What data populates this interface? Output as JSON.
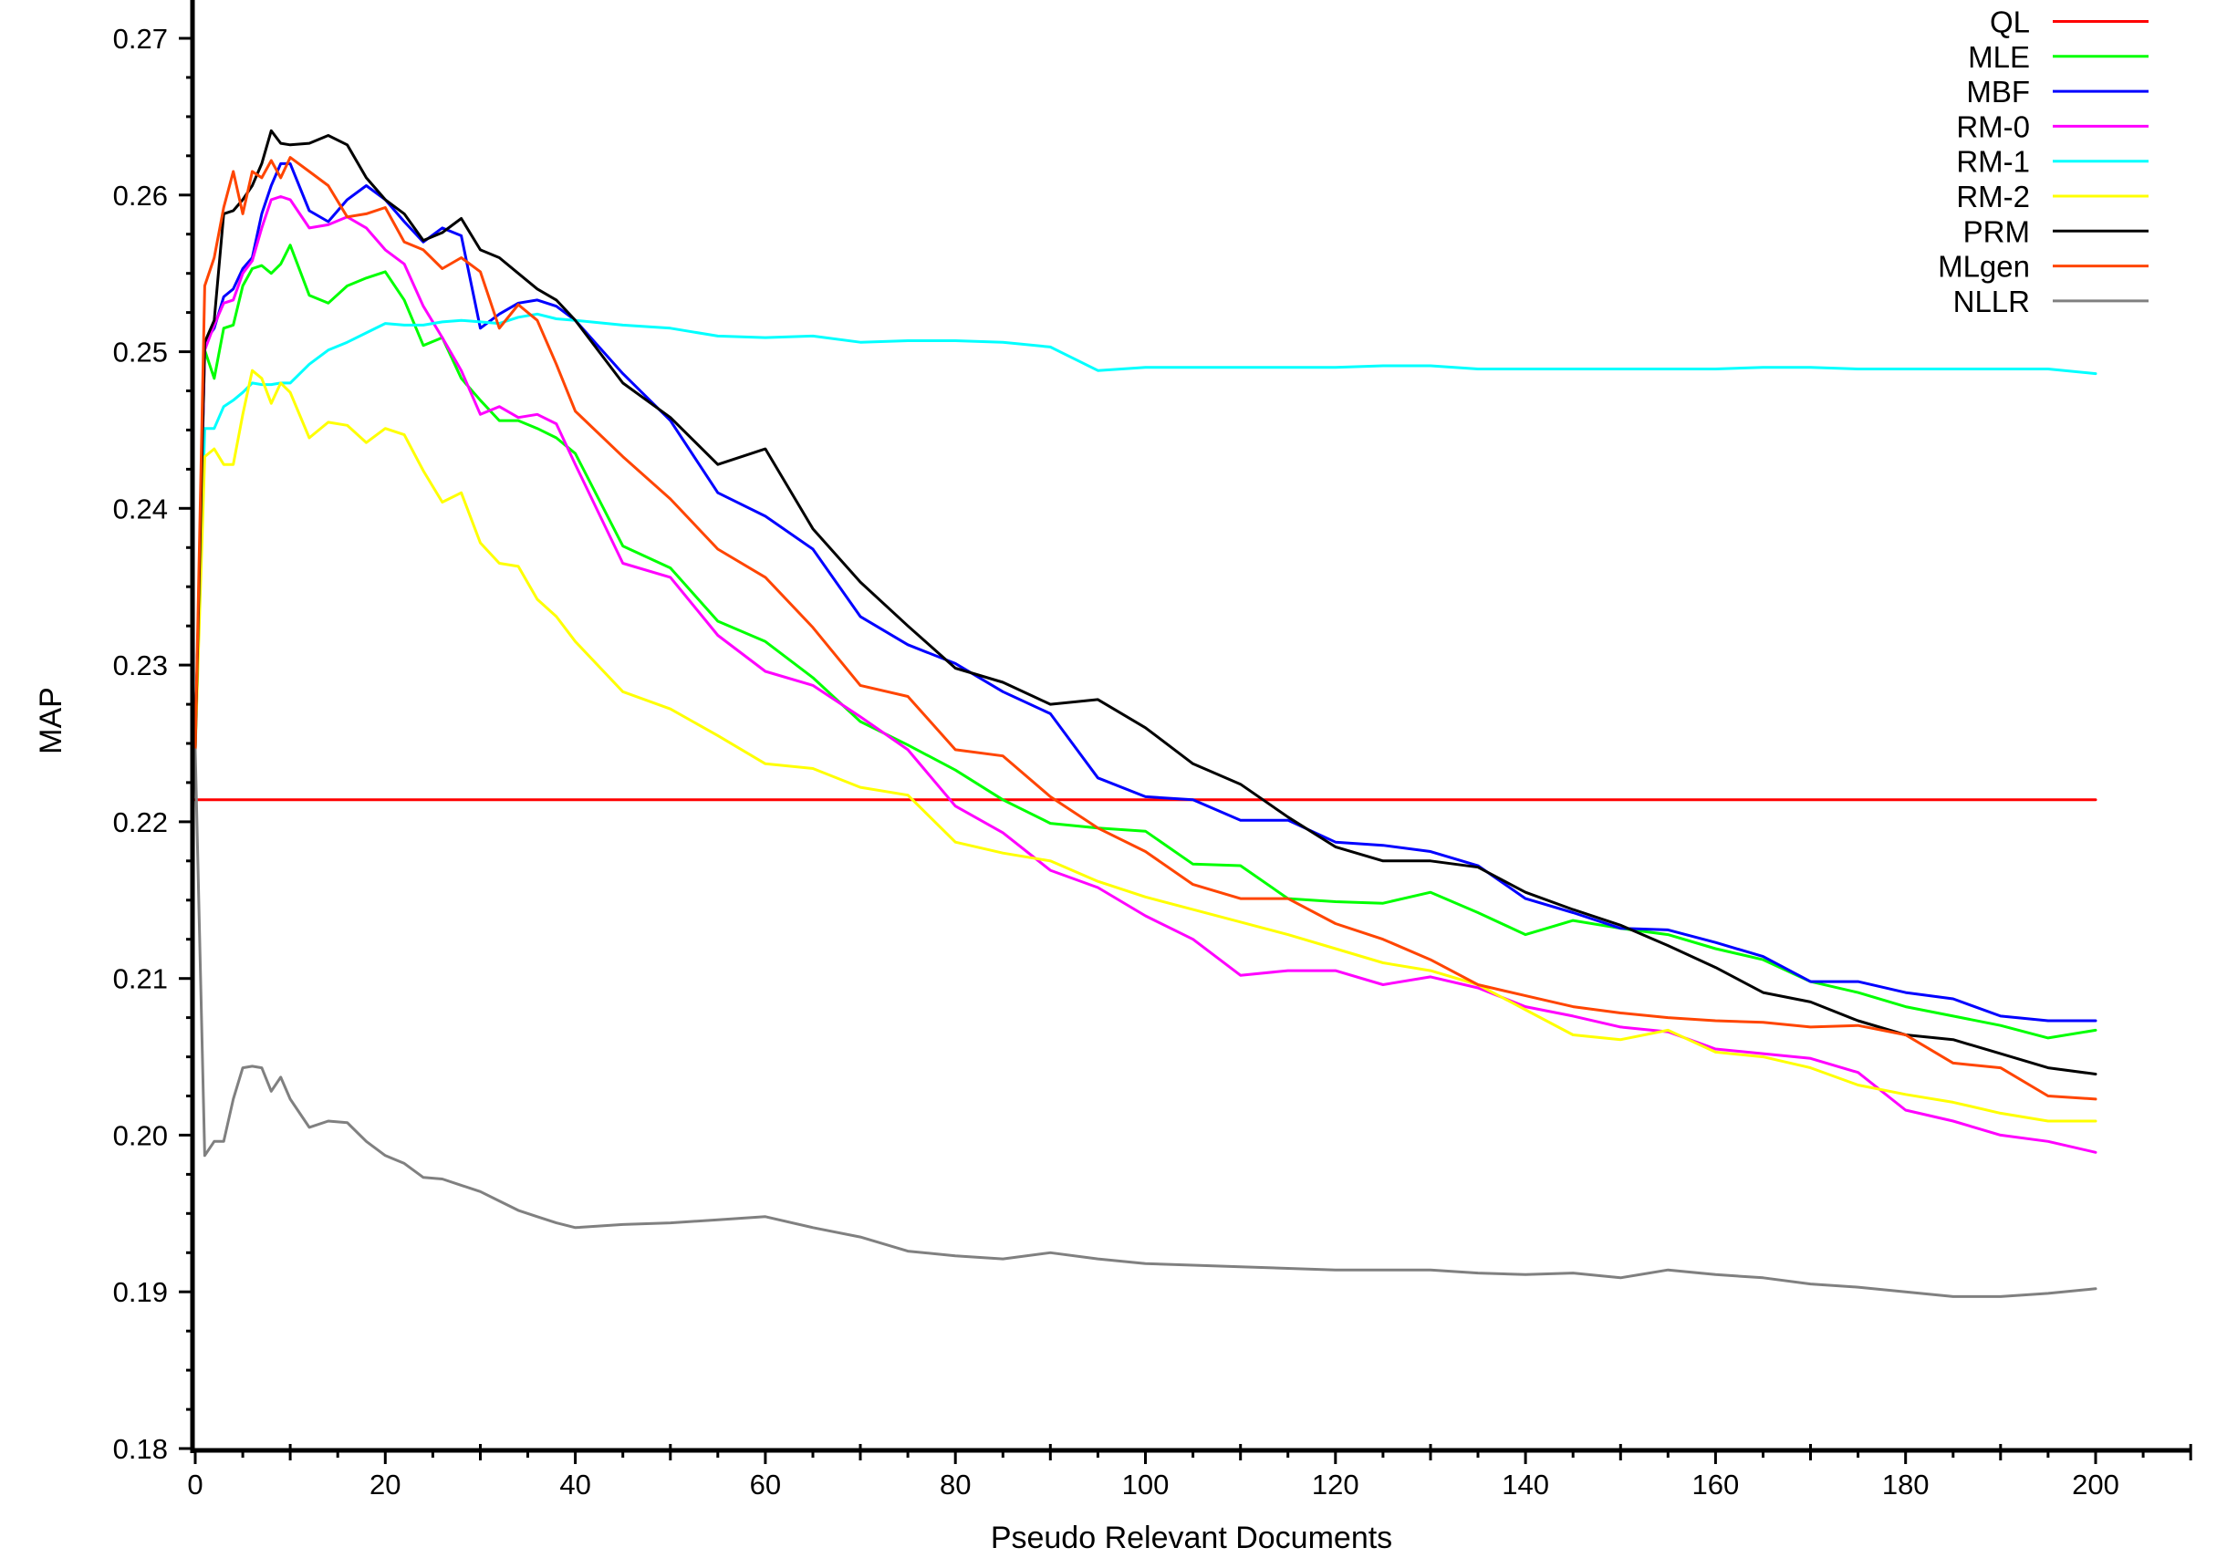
{
  "chart_data": {
    "type": "line",
    "xlabel": "Pseudo Relevant Documents",
    "ylabel": "MAP",
    "xlim": [
      0,
      200
    ],
    "ylim": [
      0.18,
      0.27
    ],
    "xticks": [
      "0",
      "20",
      "40",
      "60",
      "80",
      "100",
      "120",
      "140",
      "160",
      "180",
      "200"
    ],
    "yticks": [
      "0.18",
      "0.19",
      "0.20",
      "0.21",
      "0.22",
      "0.23",
      "0.24",
      "0.25",
      "0.26",
      "0.27"
    ],
    "legend_position": "top-right",
    "grid": false,
    "x": [
      0,
      1,
      2,
      3,
      4,
      5,
      6,
      7,
      8,
      9,
      10,
      12,
      14,
      16,
      18,
      20,
      22,
      24,
      26,
      28,
      30,
      32,
      34,
      36,
      38,
      40,
      45,
      50,
      55,
      60,
      65,
      70,
      75,
      80,
      85,
      90,
      95,
      100,
      105,
      110,
      115,
      120,
      125,
      130,
      135,
      140,
      145,
      150,
      155,
      160,
      165,
      170,
      175,
      180,
      185,
      190,
      195,
      200
    ],
    "series": [
      {
        "name": "QL",
        "color": "#ff0000",
        "values": [
          0.2214,
          0.2214,
          0.2214,
          0.2214,
          0.2214,
          0.2214,
          0.2214,
          0.2214,
          0.2214,
          0.2214,
          0.2214,
          0.2214,
          0.2214,
          0.2214,
          0.2214,
          0.2214,
          0.2214,
          0.2214,
          0.2214,
          0.2214,
          0.2214,
          0.2214,
          0.2214,
          0.2214,
          0.2214,
          0.2214,
          0.2214,
          0.2214,
          0.2214,
          0.2214,
          0.2214,
          0.2214,
          0.2214,
          0.2214,
          0.2214,
          0.2214,
          0.2214,
          0.2214,
          0.2214,
          0.2214,
          0.2214,
          0.2214,
          0.2214,
          0.2214,
          0.2214,
          0.2214,
          0.2214,
          0.2214,
          0.2214,
          0.2214,
          0.2214,
          0.2214,
          0.2214,
          0.2214,
          0.2214,
          0.2214,
          0.2214,
          0.2214
        ]
      },
      {
        "name": "MLE",
        "color": "#00ff00",
        "values": [
          0.2246,
          0.2501,
          0.2483,
          0.2515,
          0.2517,
          0.2542,
          0.2553,
          0.2555,
          0.255,
          0.2556,
          0.2568,
          0.2536,
          0.2531,
          0.2542,
          0.2547,
          0.2551,
          0.2533,
          0.2504,
          0.2509,
          0.2483,
          0.2469,
          0.2456,
          0.2456,
          0.2451,
          0.2445,
          0.2435,
          0.2376,
          0.2362,
          0.2328,
          0.2315,
          0.2292,
          0.2264,
          0.2249,
          0.2233,
          0.2214,
          0.2199,
          0.2196,
          0.2194,
          0.2173,
          0.2172,
          0.2151,
          0.2149,
          0.2148,
          0.2155,
          0.2142,
          0.2128,
          0.2137,
          0.2132,
          0.2128,
          0.2119,
          0.2112,
          0.2098,
          0.2091,
          0.2082,
          0.2076,
          0.207,
          0.2062,
          0.2067
        ]
      },
      {
        "name": "MBF",
        "color": "#0000ff",
        "values": [
          0.2246,
          0.2506,
          0.2515,
          0.2535,
          0.254,
          0.2553,
          0.256,
          0.2588,
          0.2606,
          0.262,
          0.262,
          0.259,
          0.2583,
          0.2597,
          0.2606,
          0.2597,
          0.2583,
          0.257,
          0.2579,
          0.2574,
          0.2515,
          0.2524,
          0.2531,
          0.2533,
          0.2529,
          0.252,
          0.2486,
          0.2456,
          0.241,
          0.2395,
          0.2374,
          0.2331,
          0.2313,
          0.2301,
          0.2283,
          0.2269,
          0.2228,
          0.2216,
          0.2214,
          0.2201,
          0.2201,
          0.2187,
          0.2185,
          0.2181,
          0.2172,
          0.2151,
          0.2142,
          0.2132,
          0.2131,
          0.2123,
          0.2114,
          0.2098,
          0.2098,
          0.2091,
          0.2087,
          0.2076,
          0.2073,
          0.2073
        ]
      },
      {
        "name": "RM-0",
        "color": "#ff00ff",
        "values": [
          0.2246,
          0.2501,
          0.2517,
          0.2531,
          0.2533,
          0.255,
          0.2558,
          0.2579,
          0.2597,
          0.2599,
          0.2597,
          0.2579,
          0.2581,
          0.2586,
          0.2579,
          0.2565,
          0.2556,
          0.2529,
          0.2509,
          0.2488,
          0.246,
          0.2465,
          0.2458,
          0.246,
          0.2454,
          0.2428,
          0.2365,
          0.2356,
          0.2319,
          0.2296,
          0.2287,
          0.2267,
          0.2246,
          0.221,
          0.2193,
          0.2169,
          0.2158,
          0.214,
          0.2125,
          0.2102,
          0.2105,
          0.2105,
          0.2096,
          0.2101,
          0.2094,
          0.2082,
          0.2076,
          0.2069,
          0.2066,
          0.2055,
          0.2052,
          0.2049,
          0.204,
          0.2016,
          0.2009,
          0.2,
          0.1996,
          0.1989
        ]
      },
      {
        "name": "RM-1",
        "color": "#00ffff",
        "values": [
          0.2246,
          0.2451,
          0.2451,
          0.2465,
          0.2469,
          0.2474,
          0.248,
          0.2479,
          0.2479,
          0.248,
          0.248,
          0.2492,
          0.2501,
          0.2506,
          0.2512,
          0.2518,
          0.2517,
          0.2517,
          0.2519,
          0.252,
          0.2519,
          0.2518,
          0.2522,
          0.2524,
          0.2521,
          0.252,
          0.2517,
          0.2515,
          0.251,
          0.2509,
          0.251,
          0.2506,
          0.2507,
          0.2507,
          0.2506,
          0.2503,
          0.2488,
          0.249,
          0.249,
          0.249,
          0.249,
          0.249,
          0.2491,
          0.2491,
          0.2489,
          0.2489,
          0.2489,
          0.2489,
          0.2489,
          0.2489,
          0.249,
          0.249,
          0.2489,
          0.2489,
          0.2489,
          0.2489,
          0.2489,
          0.2486
        ]
      },
      {
        "name": "RM-2",
        "color": "#ffff00",
        "values": [
          0.2246,
          0.2433,
          0.2438,
          0.2428,
          0.2428,
          0.246,
          0.2488,
          0.2483,
          0.2467,
          0.248,
          0.2474,
          0.2445,
          0.2455,
          0.2453,
          0.2442,
          0.2451,
          0.2447,
          0.2424,
          0.2404,
          0.241,
          0.2378,
          0.2365,
          0.2363,
          0.2342,
          0.2331,
          0.2315,
          0.2283,
          0.2272,
          0.2255,
          0.2237,
          0.2234,
          0.2222,
          0.2217,
          0.2187,
          0.218,
          0.2175,
          0.2162,
          0.2152,
          0.2144,
          0.2136,
          0.2128,
          0.2119,
          0.211,
          0.2105,
          0.2096,
          0.208,
          0.2064,
          0.2061,
          0.2067,
          0.2053,
          0.205,
          0.2043,
          0.2032,
          0.2026,
          0.2021,
          0.2014,
          0.2009,
          0.2009
        ]
      },
      {
        "name": "PRM",
        "color": "#000000",
        "values": [
          0.2246,
          0.2506,
          0.252,
          0.2588,
          0.259,
          0.2597,
          0.2606,
          0.262,
          0.2641,
          0.2633,
          0.2632,
          0.2633,
          0.2638,
          0.2632,
          0.2611,
          0.2597,
          0.2588,
          0.2571,
          0.2576,
          0.2585,
          0.2565,
          0.256,
          0.255,
          0.254,
          0.2533,
          0.252,
          0.248,
          0.2458,
          0.2428,
          0.2438,
          0.2387,
          0.2353,
          0.2325,
          0.2298,
          0.2289,
          0.2275,
          0.2278,
          0.226,
          0.2237,
          0.2224,
          0.2203,
          0.2184,
          0.2175,
          0.2175,
          0.2171,
          0.2155,
          0.2144,
          0.2134,
          0.2121,
          0.2107,
          0.2091,
          0.2085,
          0.2073,
          0.2064,
          0.2061,
          0.2052,
          0.2043,
          0.2039
        ]
      },
      {
        "name": "MLgen",
        "color": "#ff4500",
        "values": [
          0.2246,
          0.2542,
          0.256,
          0.2592,
          0.2615,
          0.2588,
          0.2615,
          0.2611,
          0.2622,
          0.2611,
          0.2624,
          0.2615,
          0.2606,
          0.2586,
          0.2588,
          0.2592,
          0.257,
          0.2565,
          0.2553,
          0.256,
          0.2551,
          0.2515,
          0.253,
          0.252,
          0.2492,
          0.2462,
          0.2433,
          0.2406,
          0.2374,
          0.2356,
          0.2324,
          0.2287,
          0.228,
          0.2246,
          0.2242,
          0.2216,
          0.2196,
          0.2181,
          0.216,
          0.2151,
          0.2151,
          0.2135,
          0.2125,
          0.2112,
          0.2096,
          0.2089,
          0.2082,
          0.2078,
          0.2075,
          0.2073,
          0.2072,
          0.2069,
          0.207,
          0.2064,
          0.2046,
          0.2043,
          0.2025,
          0.2023
        ]
      },
      {
        "name": "NLLR",
        "color": "#808080",
        "values": [
          0.2246,
          0.1987,
          0.1996,
          0.1996,
          0.2023,
          0.2043,
          0.2044,
          0.2043,
          0.2028,
          0.2037,
          0.2023,
          0.2005,
          0.2009,
          0.2008,
          0.1996,
          0.1987,
          0.1982,
          0.1973,
          0.1972,
          0.1968,
          0.1964,
          0.1958,
          0.1952,
          0.1948,
          0.1944,
          0.1941,
          0.1943,
          0.1944,
          0.1946,
          0.1948,
          0.1941,
          0.1935,
          0.1926,
          0.1923,
          0.1921,
          0.1925,
          0.1921,
          0.1918,
          0.1917,
          0.1916,
          0.1915,
          0.1914,
          0.1914,
          0.1914,
          0.1912,
          0.1911,
          0.1912,
          0.1909,
          0.1914,
          0.1911,
          0.1909,
          0.1905,
          0.1903,
          0.19,
          0.1897,
          0.1897,
          0.1899,
          0.1902
        ]
      }
    ]
  }
}
